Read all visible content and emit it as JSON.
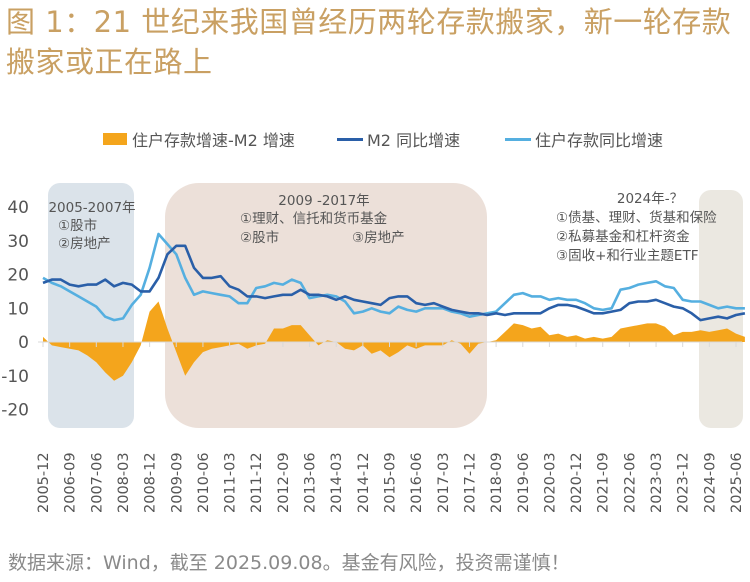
{
  "title": "图 1：21 世纪来我国曾经历两轮存款搬家，新一轮存款搬家或正在路上",
  "source": "数据来源：Wind，截至 2025.09.08。基金有风险，投资需谨慎！",
  "colors": {
    "diff": "#f4a51c",
    "m2": "#2a5fa8",
    "deposit": "#55afe0",
    "period1_bg": "#dbe3ea",
    "period2_bg": "#ece0d9",
    "period3_bg": "#ebe8e1",
    "title": "#c9a063"
  },
  "legend": [
    {
      "label": "住户存款增速-M2 增速",
      "type": "area"
    },
    {
      "label": "M2 同比增速",
      "type": "line"
    },
    {
      "label": "住户存款同比增速",
      "type": "line"
    }
  ],
  "annotations": [
    {
      "title": "2005-2007年",
      "lines": [
        "①股市",
        "②房地产"
      ]
    },
    {
      "title": "2009 -2017年",
      "lines": [
        "①理财、信托和货币基金",
        "②股市",
        "③房地产"
      ]
    },
    {
      "title": "2024年-？",
      "lines": [
        "①债基、理财、货基和保险",
        "②私募基金和杠杆资金",
        "③固收+和行业主题ETF"
      ]
    }
  ],
  "chart_data": {
    "type": "line",
    "title": "",
    "xlabel": "",
    "ylabel": "",
    "ylim": [
      -20,
      40
    ],
    "yticks": [
      "40",
      "30",
      "20",
      "10",
      "0",
      "-10",
      "-20"
    ],
    "xticks": [
      "2005-12",
      "2006-09",
      "2007-06",
      "2008-03",
      "2008-12",
      "2009-09",
      "2010-06",
      "2011-03",
      "2011-12",
      "2012-09",
      "2013-06",
      "2014-03",
      "2014-12",
      "2015-09",
      "2016-06",
      "2017-03",
      "2017-12",
      "2018-09",
      "2019-06",
      "2020-03",
      "2020-12",
      "2021-09",
      "2022-06",
      "2023-03",
      "2023-12",
      "2024-09",
      "2025-06"
    ],
    "grid": false,
    "legend_position": "top",
    "shaded_periods": [
      {
        "from": "2006-03",
        "to": "2008-09",
        "label": "2005-2007年"
      },
      {
        "from": "2009-03",
        "to": "2018-03",
        "label": "2009 -2017年"
      },
      {
        "from": "2024-06",
        "to": "2025-09",
        "label": "2024年-？"
      }
    ],
    "x": [
      "2005-12",
      "2006-03",
      "2006-06",
      "2006-09",
      "2006-12",
      "2007-03",
      "2007-06",
      "2007-09",
      "2007-12",
      "2008-03",
      "2008-06",
      "2008-09",
      "2008-12",
      "2009-03",
      "2009-06",
      "2009-09",
      "2009-12",
      "2010-03",
      "2010-06",
      "2010-09",
      "2010-12",
      "2011-03",
      "2011-06",
      "2011-09",
      "2011-12",
      "2012-03",
      "2012-06",
      "2012-09",
      "2012-12",
      "2013-03",
      "2013-06",
      "2013-09",
      "2013-12",
      "2014-03",
      "2014-06",
      "2014-09",
      "2014-12",
      "2015-03",
      "2015-06",
      "2015-09",
      "2015-12",
      "2016-03",
      "2016-06",
      "2016-09",
      "2016-12",
      "2017-03",
      "2017-06",
      "2017-09",
      "2017-12",
      "2018-03",
      "2018-06",
      "2018-09",
      "2018-12",
      "2019-03",
      "2019-06",
      "2019-09",
      "2019-12",
      "2020-03",
      "2020-06",
      "2020-09",
      "2020-12",
      "2021-03",
      "2021-06",
      "2021-09",
      "2021-12",
      "2022-03",
      "2022-06",
      "2022-09",
      "2022-12",
      "2023-03",
      "2023-06",
      "2023-09",
      "2023-12",
      "2024-03",
      "2024-06",
      "2024-09",
      "2024-12",
      "2025-03",
      "2025-06",
      "2025-09"
    ],
    "series": [
      {
        "name": "住户存款增速-M2 增速",
        "type": "area",
        "values": [
          1.5,
          -1.0,
          -1.5,
          -2.0,
          -2.5,
          -4.0,
          -6.0,
          -9.0,
          -11.5,
          -10.0,
          -6.0,
          -1.0,
          9.0,
          12.0,
          4.0,
          -3.0,
          -10.0,
          -6.0,
          -3.0,
          -2.0,
          -1.5,
          -1.0,
          -0.5,
          -2.0,
          -1.0,
          -0.5,
          4.0,
          4.0,
          5.0,
          5.0,
          2.0,
          -1.0,
          0.5,
          0.0,
          -2.0,
          -2.5,
          -1.0,
          -3.5,
          -2.5,
          -4.5,
          -3.0,
          -1.0,
          -2.0,
          -1.0,
          -1.0,
          -1.0,
          0.5,
          -0.5,
          -3.5,
          -0.5,
          0.0,
          0.5,
          3.0,
          5.5,
          5.0,
          4.0,
          4.5,
          2.0,
          2.5,
          1.5,
          2.0,
          1.0,
          1.5,
          1.0,
          1.5,
          4.0,
          4.5,
          5.0,
          5.5,
          5.5,
          4.5,
          2.0,
          3.0,
          3.0,
          3.5,
          3.0,
          3.5,
          4.0,
          2.5,
          1.5
        ]
      },
      {
        "name": "M2 同比增速",
        "type": "line",
        "values": [
          17.5,
          18.5,
          18.5,
          17.0,
          16.5,
          17.0,
          17.0,
          18.5,
          16.5,
          17.5,
          17.0,
          15.0,
          15.0,
          19.0,
          26.0,
          28.5,
          28.5,
          22.0,
          19.0,
          19.0,
          19.5,
          16.5,
          15.5,
          13.5,
          13.5,
          13.0,
          13.5,
          14.0,
          14.0,
          15.5,
          14.0,
          14.0,
          13.5,
          12.5,
          13.5,
          12.5,
          12.0,
          11.5,
          11.0,
          13.0,
          13.5,
          13.5,
          11.5,
          11.0,
          11.5,
          10.5,
          9.5,
          9.0,
          8.5,
          8.5,
          8.0,
          8.5,
          8.0,
          8.5,
          8.5,
          8.5,
          8.5,
          10.0,
          11.0,
          11.0,
          10.5,
          9.5,
          8.5,
          8.5,
          9.0,
          9.5,
          11.5,
          12.0,
          12.0,
          12.5,
          11.5,
          10.5,
          10.0,
          8.5,
          6.5,
          7.0,
          7.5,
          7.0,
          8.0,
          8.5
        ]
      },
      {
        "name": "住户存款同比增速",
        "type": "line",
        "values": [
          19.0,
          17.5,
          16.5,
          15.0,
          13.5,
          12.0,
          10.5,
          7.5,
          6.5,
          7.0,
          11.0,
          14.0,
          22.0,
          32.0,
          29.0,
          26.0,
          19.0,
          14.0,
          15.0,
          14.5,
          14.0,
          13.5,
          11.5,
          11.5,
          16.0,
          16.5,
          17.5,
          17.0,
          18.5,
          17.5,
          13.0,
          13.5,
          14.0,
          13.5,
          12.0,
          8.5,
          9.0,
          10.0,
          9.0,
          8.5,
          10.5,
          9.5,
          9.0,
          10.0,
          10.0,
          10.0,
          9.0,
          8.5,
          7.5,
          8.0,
          8.5,
          9.0,
          11.5,
          14.0,
          14.5,
          13.5,
          13.5,
          12.5,
          13.0,
          12.5,
          12.5,
          11.5,
          10.0,
          9.5,
          10.0,
          15.5,
          16.0,
          17.0,
          17.5,
          18.0,
          16.5,
          16.0,
          12.5,
          12.0,
          12.0,
          11.0,
          10.0,
          10.5,
          10.0,
          10.0
        ]
      }
    ]
  }
}
